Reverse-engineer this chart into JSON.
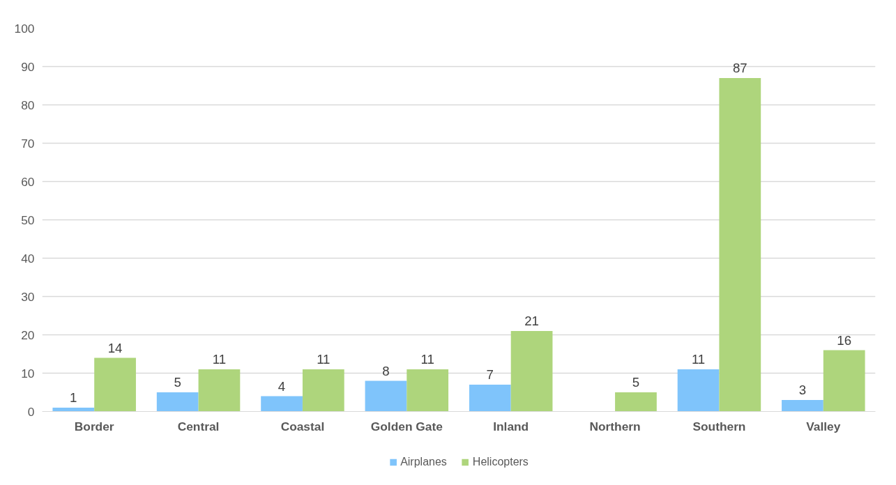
{
  "chart_data": {
    "type": "bar",
    "categories": [
      "Border",
      "Central",
      "Coastal",
      "Golden Gate",
      "Inland",
      "Northern",
      "Southern",
      "Valley"
    ],
    "series": [
      {
        "name": "Airplanes",
        "color": "#7fc4fb",
        "values": [
          1,
          5,
          4,
          8,
          7,
          null,
          11,
          3
        ]
      },
      {
        "name": "Helicopters",
        "color": "#aed57c",
        "values": [
          14,
          11,
          11,
          11,
          21,
          5,
          87,
          16
        ]
      }
    ],
    "ylim": [
      0,
      100
    ],
    "yticks": [
      0,
      10,
      20,
      30,
      40,
      50,
      60,
      70,
      80,
      90,
      100
    ],
    "grid": "y",
    "legend": "bottom",
    "data_labels": true
  }
}
